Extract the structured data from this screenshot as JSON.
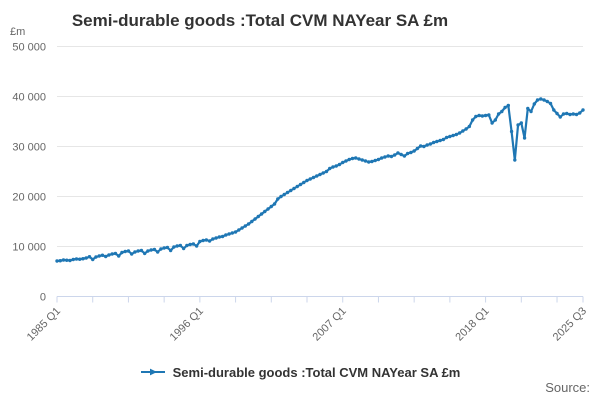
{
  "header": {
    "title": "Semi-durable goods :Total CVM NAYear SA £m"
  },
  "y_axis": {
    "unit_label": "£m",
    "tick_values": [
      0,
      10000,
      20000,
      30000,
      40000,
      50000
    ],
    "tick_labels": [
      "0",
      "10 000",
      "20 000",
      "30 000",
      "40 000",
      "50 000"
    ]
  },
  "x_axis": {
    "major_ticks": [
      {
        "label": "1985 Q1",
        "quarter_index": 0
      },
      {
        "label": "1996 Q1",
        "quarter_index": 44
      },
      {
        "label": "2007 Q1",
        "quarter_index": 88
      },
      {
        "label": "2018 Q1",
        "quarter_index": 132
      },
      {
        "label": "2025 Q3",
        "quarter_index": 162
      }
    ],
    "minor_tick_every_quarters": 11
  },
  "legend": {
    "label": "Semi-durable goods :Total CVM NAYear SA £m"
  },
  "source": {
    "label": "Source:"
  },
  "colors": {
    "line": "#1f77b4",
    "grid": "#e6e6e6",
    "axis": "#ccd6eb",
    "text_muted": "#666666",
    "text_dark": "#333333"
  },
  "chart_data": {
    "type": "line",
    "title": "Semi-durable goods :Total CVM NAYear SA £m",
    "xlabel": "",
    "ylabel": "£m",
    "ylim": [
      0,
      50000
    ],
    "grid": true,
    "legend_position": "bottom",
    "x_unit": "quarter",
    "x_start": "1985 Q1",
    "x_end": "2025 Q3",
    "series": [
      {
        "name": "Semi-durable goods :Total CVM NAYear SA £m",
        "values": [
          7100,
          7150,
          7300,
          7250,
          7200,
          7400,
          7500,
          7450,
          7550,
          7700,
          7950,
          7400,
          7900,
          8100,
          8250,
          8000,
          8300,
          8500,
          8600,
          8100,
          8800,
          9000,
          9100,
          8500,
          8900,
          9100,
          9200,
          8600,
          9100,
          9300,
          9400,
          8900,
          9500,
          9700,
          9800,
          9200,
          9900,
          10100,
          10200,
          9600,
          10200,
          10400,
          10500,
          10100,
          11000,
          11200,
          11300,
          11100,
          11500,
          11700,
          11900,
          12000,
          12300,
          12500,
          12700,
          12900,
          13300,
          13700,
          14100,
          14500,
          15000,
          15500,
          16000,
          16500,
          17000,
          17500,
          18000,
          18500,
          19500,
          20000,
          20400,
          20800,
          21200,
          21600,
          22000,
          22400,
          22800,
          23200,
          23500,
          23800,
          24100,
          24400,
          24700,
          25000,
          25600,
          25900,
          26100,
          26400,
          26800,
          27100,
          27400,
          27600,
          27700,
          27500,
          27300,
          27100,
          26900,
          27000,
          27200,
          27400,
          27700,
          27900,
          28100,
          28000,
          28300,
          28700,
          28400,
          28100,
          28600,
          28800,
          29100,
          29600,
          30100,
          30000,
          30300,
          30500,
          30800,
          31000,
          31200,
          31400,
          31800,
          32000,
          32200,
          32400,
          32700,
          33100,
          33500,
          34000,
          35300,
          36000,
          36200,
          36100,
          36200,
          36300,
          34700,
          35300,
          36500,
          37000,
          37800,
          38200,
          33000,
          27300,
          34300,
          34700,
          31700,
          37600,
          37000,
          38500,
          39300,
          39500,
          39300,
          39000,
          38600,
          37300,
          36600,
          35900,
          36500,
          36600,
          36400,
          36500,
          36400,
          36700,
          37300
        ]
      }
    ]
  }
}
